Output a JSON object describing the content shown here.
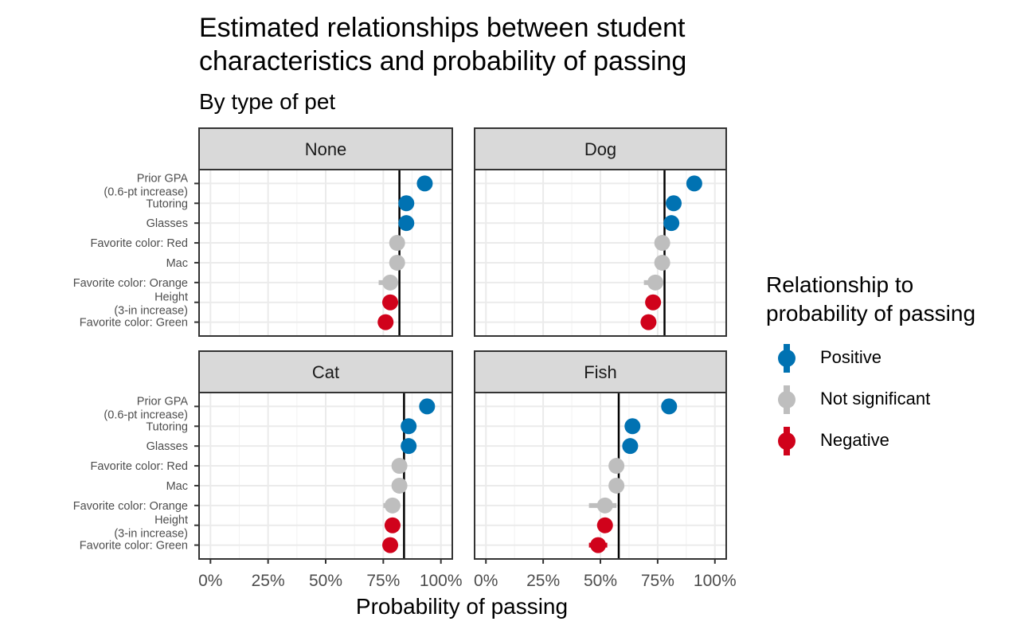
{
  "title_lines": [
    "Estimated relationships between student",
    "characteristics and probability of passing"
  ],
  "subtitle": "By type of pet",
  "xlabel": "Probability of passing",
  "legend": {
    "title_lines": [
      "Relationship to",
      "probability of passing"
    ],
    "entries": [
      {
        "label": "Positive",
        "color": "#0072b2"
      },
      {
        "label": "Not significant",
        "color": "#bebebe"
      },
      {
        "label": "Negative",
        "color": "#d0021b"
      }
    ]
  },
  "chart_data": {
    "type": "scatter",
    "xlim": [
      0,
      1
    ],
    "x_ticks": [
      "0%",
      "25%",
      "50%",
      "75%",
      "100%"
    ],
    "x_tick_values": [
      0,
      0.25,
      0.5,
      0.75,
      1.0
    ],
    "grid": true,
    "legend_position": "right",
    "categories": [
      [
        "Prior GPA",
        "(0.6-pt increase)"
      ],
      [
        "Tutoring"
      ],
      [
        "Glasses"
      ],
      [
        "Favorite color: Red"
      ],
      [
        "Mac"
      ],
      [
        "Favorite color: Orange"
      ],
      [
        "Height",
        "(3-in increase)"
      ],
      [
        "Favorite color: Green"
      ]
    ],
    "panels": [
      {
        "name": "None",
        "baseline": 0.82,
        "points": [
          {
            "x": 0.93,
            "lo": 0.92,
            "hi": 0.94,
            "group": "Positive"
          },
          {
            "x": 0.85,
            "lo": 0.84,
            "hi": 0.86,
            "group": "Positive"
          },
          {
            "x": 0.85,
            "lo": 0.84,
            "hi": 0.86,
            "group": "Positive"
          },
          {
            "x": 0.81,
            "lo": 0.8,
            "hi": 0.82,
            "group": "Not significant"
          },
          {
            "x": 0.81,
            "lo": 0.8,
            "hi": 0.82,
            "group": "Not significant"
          },
          {
            "x": 0.78,
            "lo": 0.73,
            "hi": 0.81,
            "group": "Not significant"
          },
          {
            "x": 0.78,
            "lo": 0.77,
            "hi": 0.8,
            "group": "Negative"
          },
          {
            "x": 0.76,
            "lo": 0.74,
            "hi": 0.78,
            "group": "Negative"
          }
        ]
      },
      {
        "name": "Dog",
        "baseline": 0.78,
        "points": [
          {
            "x": 0.91,
            "lo": 0.9,
            "hi": 0.92,
            "group": "Positive"
          },
          {
            "x": 0.82,
            "lo": 0.81,
            "hi": 0.83,
            "group": "Positive"
          },
          {
            "x": 0.81,
            "lo": 0.8,
            "hi": 0.82,
            "group": "Positive"
          },
          {
            "x": 0.77,
            "lo": 0.76,
            "hi": 0.78,
            "group": "Not significant"
          },
          {
            "x": 0.77,
            "lo": 0.76,
            "hi": 0.78,
            "group": "Not significant"
          },
          {
            "x": 0.74,
            "lo": 0.69,
            "hi": 0.77,
            "group": "Not significant"
          },
          {
            "x": 0.73,
            "lo": 0.72,
            "hi": 0.75,
            "group": "Negative"
          },
          {
            "x": 0.71,
            "lo": 0.69,
            "hi": 0.73,
            "group": "Negative"
          }
        ]
      },
      {
        "name": "Cat",
        "baseline": 0.84,
        "points": [
          {
            "x": 0.94,
            "lo": 0.93,
            "hi": 0.95,
            "group": "Positive"
          },
          {
            "x": 0.86,
            "lo": 0.85,
            "hi": 0.87,
            "group": "Positive"
          },
          {
            "x": 0.86,
            "lo": 0.85,
            "hi": 0.87,
            "group": "Positive"
          },
          {
            "x": 0.82,
            "lo": 0.81,
            "hi": 0.83,
            "group": "Not significant"
          },
          {
            "x": 0.82,
            "lo": 0.81,
            "hi": 0.83,
            "group": "Not significant"
          },
          {
            "x": 0.79,
            "lo": 0.75,
            "hi": 0.82,
            "group": "Not significant"
          },
          {
            "x": 0.79,
            "lo": 0.78,
            "hi": 0.81,
            "group": "Negative"
          },
          {
            "x": 0.78,
            "lo": 0.76,
            "hi": 0.8,
            "group": "Negative"
          }
        ]
      },
      {
        "name": "Fish",
        "baseline": 0.58,
        "points": [
          {
            "x": 0.8,
            "lo": 0.79,
            "hi": 0.81,
            "group": "Positive"
          },
          {
            "x": 0.64,
            "lo": 0.63,
            "hi": 0.65,
            "group": "Positive"
          },
          {
            "x": 0.63,
            "lo": 0.62,
            "hi": 0.64,
            "group": "Positive"
          },
          {
            "x": 0.57,
            "lo": 0.54,
            "hi": 0.6,
            "group": "Not significant"
          },
          {
            "x": 0.57,
            "lo": 0.55,
            "hi": 0.59,
            "group": "Not significant"
          },
          {
            "x": 0.52,
            "lo": 0.45,
            "hi": 0.57,
            "group": "Not significant"
          },
          {
            "x": 0.52,
            "lo": 0.5,
            "hi": 0.54,
            "group": "Negative"
          },
          {
            "x": 0.49,
            "lo": 0.45,
            "hi": 0.53,
            "group": "Negative"
          }
        ]
      }
    ]
  }
}
